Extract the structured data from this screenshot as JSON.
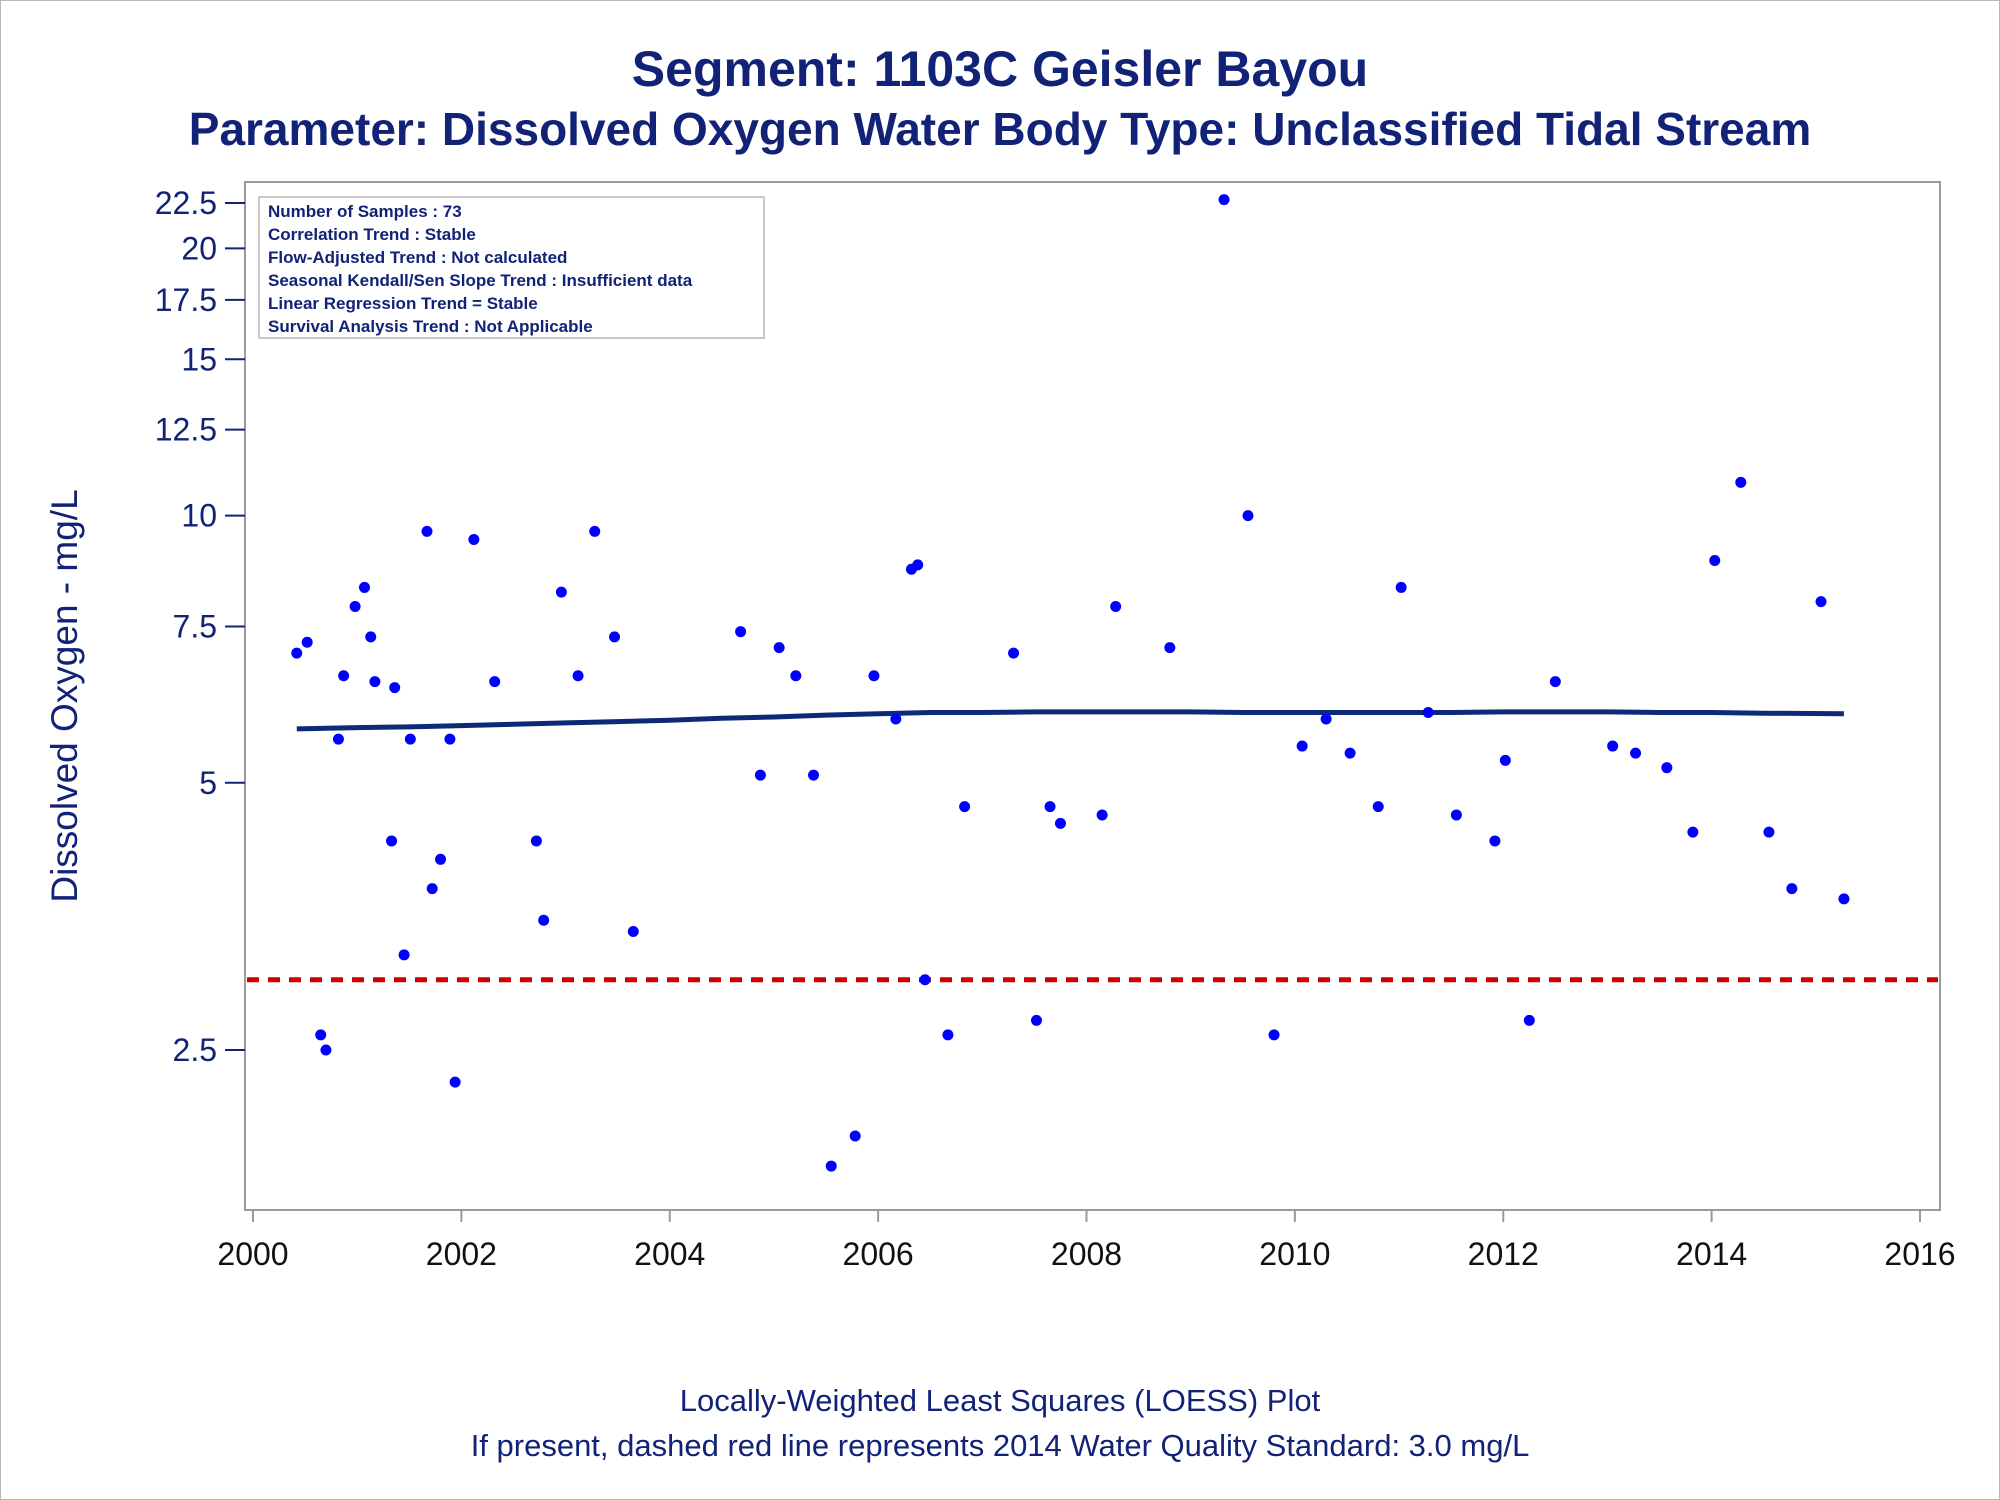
{
  "title": "Segment: 1103C  Geisler Bayou",
  "subtitle": "Parameter: Dissolved Oxygen   Water Body Type: Unclassified Tidal Stream",
  "footnotes": [
    "Locally-Weighted Least Squares (LOESS) Plot",
    "If present, dashed red line represents 2014 Water Quality Standard: 3.0 mg/L"
  ],
  "colors": {
    "text": "#112277",
    "points": "#0000ff",
    "trend": "#0d2a78",
    "standard": "#cc0000",
    "axis": "#9a9a9a"
  },
  "chart_data": {
    "type": "scatter",
    "xlabel": "",
    "ylabel": "Dissolved Oxygen - mg/L",
    "y_scale": "log",
    "xlim": [
      2000,
      2016
    ],
    "x_ticks": [
      2000,
      2002,
      2004,
      2006,
      2008,
      2010,
      2012,
      2014,
      2016
    ],
    "x_tick_labels": [
      "2000",
      "2002",
      "2004",
      "2006",
      "2008",
      "2010",
      "2012",
      "2014",
      "2016"
    ],
    "y_ticks": [
      2.5,
      5,
      7.5,
      10,
      12.5,
      15,
      17.5,
      20,
      22.5
    ],
    "y_tick_labels": [
      "2.5",
      "5",
      "7.5",
      "10",
      "12.5",
      "15",
      "17.5",
      "20",
      "22.5"
    ],
    "ylim": [
      1.8,
      23
    ],
    "grid": false,
    "info_box": [
      "Number of Samples : 73",
      "Correlation Trend : Stable",
      "Flow-Adjusted Trend : Not calculated",
      "Seasonal Kendall/Sen Slope Trend : Insufficient data",
      "Linear Regression Trend = Stable",
      "Survival Analysis Trend : Not Applicable"
    ],
    "info_box_placement": "top-left",
    "reference_line": {
      "y": 3.0,
      "style": "dashed"
    },
    "points": [
      {
        "x": 2000.42,
        "y": 7.0
      },
      {
        "x": 2000.52,
        "y": 7.2
      },
      {
        "x": 2000.65,
        "y": 2.6
      },
      {
        "x": 2000.7,
        "y": 2.5
      },
      {
        "x": 2000.82,
        "y": 5.6
      },
      {
        "x": 2000.87,
        "y": 6.6
      },
      {
        "x": 2000.98,
        "y": 7.9
      },
      {
        "x": 2001.07,
        "y": 8.3
      },
      {
        "x": 2001.13,
        "y": 7.3
      },
      {
        "x": 2001.17,
        "y": 6.5
      },
      {
        "x": 2001.33,
        "y": 4.3
      },
      {
        "x": 2001.36,
        "y": 6.4
      },
      {
        "x": 2001.45,
        "y": 3.2
      },
      {
        "x": 2001.51,
        "y": 5.6
      },
      {
        "x": 2001.67,
        "y": 9.6
      },
      {
        "x": 2001.72,
        "y": 3.8
      },
      {
        "x": 2001.8,
        "y": 4.1
      },
      {
        "x": 2001.89,
        "y": 5.6
      },
      {
        "x": 2001.94,
        "y": 2.3
      },
      {
        "x": 2002.12,
        "y": 9.4
      },
      {
        "x": 2002.32,
        "y": 6.5
      },
      {
        "x": 2002.72,
        "y": 4.3
      },
      {
        "x": 2002.79,
        "y": 3.5
      },
      {
        "x": 2002.96,
        "y": 8.2
      },
      {
        "x": 2003.12,
        "y": 6.6
      },
      {
        "x": 2003.28,
        "y": 9.6
      },
      {
        "x": 2003.47,
        "y": 7.3
      },
      {
        "x": 2003.65,
        "y": 3.4
      },
      {
        "x": 2004.68,
        "y": 7.4
      },
      {
        "x": 2004.87,
        "y": 5.1
      },
      {
        "x": 2005.05,
        "y": 7.1
      },
      {
        "x": 2005.21,
        "y": 6.6
      },
      {
        "x": 2005.38,
        "y": 5.1
      },
      {
        "x": 2005.55,
        "y": 1.85
      },
      {
        "x": 2005.78,
        "y": 2.0
      },
      {
        "x": 2005.96,
        "y": 6.6
      },
      {
        "x": 2006.17,
        "y": 5.9
      },
      {
        "x": 2006.32,
        "y": 8.7
      },
      {
        "x": 2006.38,
        "y": 8.8
      },
      {
        "x": 2006.45,
        "y": 3.0
      },
      {
        "x": 2006.67,
        "y": 2.6
      },
      {
        "x": 2006.83,
        "y": 4.7
      },
      {
        "x": 2007.3,
        "y": 7.0
      },
      {
        "x": 2007.52,
        "y": 2.7
      },
      {
        "x": 2007.65,
        "y": 4.7
      },
      {
        "x": 2007.75,
        "y": 4.5
      },
      {
        "x": 2008.15,
        "y": 4.6
      },
      {
        "x": 2008.28,
        "y": 7.9
      },
      {
        "x": 2008.8,
        "y": 7.1
      },
      {
        "x": 2009.32,
        "y": 22.7
      },
      {
        "x": 2009.55,
        "y": 10.0
      },
      {
        "x": 2009.8,
        "y": 2.6
      },
      {
        "x": 2010.07,
        "y": 5.5
      },
      {
        "x": 2010.3,
        "y": 5.9
      },
      {
        "x": 2010.53,
        "y": 5.4
      },
      {
        "x": 2010.8,
        "y": 4.7
      },
      {
        "x": 2011.02,
        "y": 8.3
      },
      {
        "x": 2011.28,
        "y": 6.0
      },
      {
        "x": 2011.55,
        "y": 4.6
      },
      {
        "x": 2011.92,
        "y": 4.3
      },
      {
        "x": 2012.02,
        "y": 5.3
      },
      {
        "x": 2012.25,
        "y": 2.7
      },
      {
        "x": 2012.5,
        "y": 6.5
      },
      {
        "x": 2013.05,
        "y": 5.5
      },
      {
        "x": 2013.27,
        "y": 5.4
      },
      {
        "x": 2013.57,
        "y": 5.2
      },
      {
        "x": 2013.82,
        "y": 4.4
      },
      {
        "x": 2014.03,
        "y": 8.9
      },
      {
        "x": 2014.28,
        "y": 10.9
      },
      {
        "x": 2014.55,
        "y": 4.4
      },
      {
        "x": 2014.77,
        "y": 3.8
      },
      {
        "x": 2015.05,
        "y": 8.0
      },
      {
        "x": 2015.27,
        "y": 3.7
      }
    ],
    "loess": [
      {
        "x": 2000.42,
        "y": 5.75
      },
      {
        "x": 2001.0,
        "y": 5.77
      },
      {
        "x": 2001.5,
        "y": 5.78
      },
      {
        "x": 2002.0,
        "y": 5.8
      },
      {
        "x": 2002.5,
        "y": 5.82
      },
      {
        "x": 2003.0,
        "y": 5.84
      },
      {
        "x": 2003.5,
        "y": 5.86
      },
      {
        "x": 2004.0,
        "y": 5.88
      },
      {
        "x": 2004.5,
        "y": 5.91
      },
      {
        "x": 2005.0,
        "y": 5.93
      },
      {
        "x": 2005.5,
        "y": 5.96
      },
      {
        "x": 2006.0,
        "y": 5.98
      },
      {
        "x": 2006.5,
        "y": 6.0
      },
      {
        "x": 2007.0,
        "y": 6.0
      },
      {
        "x": 2007.5,
        "y": 6.01
      },
      {
        "x": 2008.0,
        "y": 6.01
      },
      {
        "x": 2008.5,
        "y": 6.01
      },
      {
        "x": 2009.0,
        "y": 6.01
      },
      {
        "x": 2009.5,
        "y": 6.0
      },
      {
        "x": 2010.0,
        "y": 6.0
      },
      {
        "x": 2010.5,
        "y": 6.0
      },
      {
        "x": 2011.0,
        "y": 6.0
      },
      {
        "x": 2011.5,
        "y": 6.0
      },
      {
        "x": 2012.0,
        "y": 6.01
      },
      {
        "x": 2012.5,
        "y": 6.01
      },
      {
        "x": 2013.0,
        "y": 6.01
      },
      {
        "x": 2013.5,
        "y": 6.0
      },
      {
        "x": 2014.0,
        "y": 6.0
      },
      {
        "x": 2014.5,
        "y": 5.99
      },
      {
        "x": 2015.27,
        "y": 5.98
      }
    ]
  }
}
